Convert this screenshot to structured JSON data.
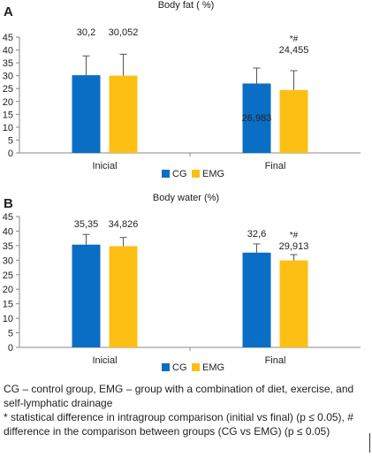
{
  "chart_data": [
    {
      "panel": "A",
      "type": "bar",
      "title": "Body fat ( %)",
      "categories": [
        "Inicial",
        "Final"
      ],
      "series": [
        {
          "name": "CG",
          "color": "#0a6ec4",
          "values": [
            30.2,
            26.983
          ],
          "errors": [
            7.5,
            6.0
          ],
          "labels": [
            "30,2",
            "26,983"
          ],
          "markers": [
            "",
            ""
          ]
        },
        {
          "name": "EMG",
          "color": "#fdbf14",
          "values": [
            30.052,
            24.455
          ],
          "errors": [
            8.3,
            7.5
          ],
          "labels": [
            "30,052",
            "24,455"
          ],
          "markers": [
            "",
            "*#"
          ]
        }
      ],
      "ylim": [
        0,
        45
      ],
      "yticks": [
        "0",
        "5",
        "10",
        "15",
        "20",
        "25",
        "30",
        "35",
        "40",
        "45"
      ],
      "grid": false,
      "legend_position": "bottom"
    },
    {
      "panel": "B",
      "type": "bar",
      "title": "Body water (%)",
      "categories": [
        "Inicial",
        "Final"
      ],
      "series": [
        {
          "name": "CG",
          "color": "#0a6ec4",
          "values": [
            35.35,
            32.6
          ],
          "errors": [
            3.5,
            3.0
          ],
          "labels": [
            "35,35",
            "32,6"
          ],
          "markers": [
            "",
            ""
          ]
        },
        {
          "name": "EMG",
          "color": "#fdbf14",
          "values": [
            34.826,
            29.913
          ],
          "errors": [
            3.0,
            2.0
          ],
          "labels": [
            "34,826",
            "29,913"
          ],
          "markers": [
            "",
            "*#"
          ]
        }
      ],
      "ylim": [
        0,
        45
      ],
      "yticks": [
        "0",
        "5",
        "10",
        "15",
        "20",
        "25",
        "30",
        "35",
        "40",
        "45"
      ],
      "grid": false,
      "legend_position": "bottom"
    }
  ],
  "caption": {
    "line1": "CG – control group, EMG – group with a combination of diet, exercise, and self-lymphatic drainage",
    "line2": "* statistical difference in intragroup comparison (initial vs final) (p ≤ 0.05), # difference in the comparison between groups (CG vs EMG) (p ≤ 0.05)"
  }
}
